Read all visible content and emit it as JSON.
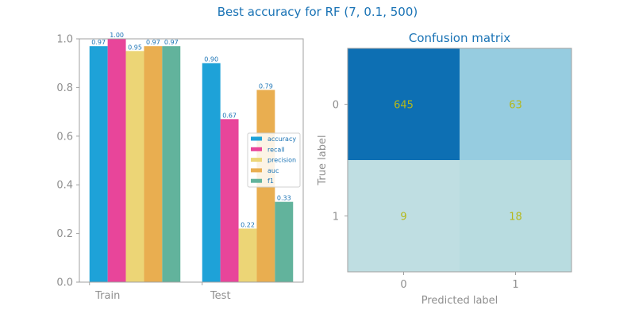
{
  "figure_title": "Best accuracy for RF (7, 0.1, 500)",
  "chart_data": [
    {
      "type": "bar",
      "categories": [
        "Train",
        "Test"
      ],
      "series": [
        {
          "name": "accuracy",
          "values": [
            0.97,
            0.9
          ],
          "labels": [
            "0.97",
            "0.90"
          ],
          "color": "#1ea2d8"
        },
        {
          "name": "recall",
          "values": [
            1.0,
            0.67
          ],
          "labels": [
            "1.00",
            "0.67"
          ],
          "color": "#e8459a"
        },
        {
          "name": "precision",
          "values": [
            0.95,
            0.22
          ],
          "labels": [
            "0.95",
            "0.22"
          ],
          "color": "#ecd576"
        },
        {
          "name": "auc",
          "values": [
            0.97,
            0.79
          ],
          "labels": [
            "0.97",
            "0.79"
          ],
          "color": "#e9ae50"
        },
        {
          "name": "f1",
          "values": [
            0.97,
            0.33
          ],
          "labels": [
            "0.97",
            "0.33"
          ],
          "color": "#62b39c"
        }
      ],
      "ylim": [
        0,
        1.0
      ],
      "yticks": [
        "0.0",
        "0.2",
        "0.4",
        "0.6",
        "0.8",
        "1.0"
      ],
      "legend_position": "center-right",
      "grid": false
    },
    {
      "type": "heatmap",
      "title": "Confusion matrix",
      "xlabel": "Predicted label",
      "ylabel": "True label",
      "x_categories": [
        "0",
        "1"
      ],
      "y_categories": [
        "0",
        "1"
      ],
      "values": [
        [
          645,
          63
        ],
        [
          9,
          18
        ]
      ],
      "cell_colors": [
        [
          "#0d6fb3",
          "#96cce0"
        ],
        [
          "#bfdee2",
          "#b8dce0"
        ]
      ],
      "value_color": "#b5b81a"
    }
  ],
  "colors": {
    "title": "#1a73b5",
    "axis": "#8f8f8f",
    "frame": "#a0a0a0"
  }
}
